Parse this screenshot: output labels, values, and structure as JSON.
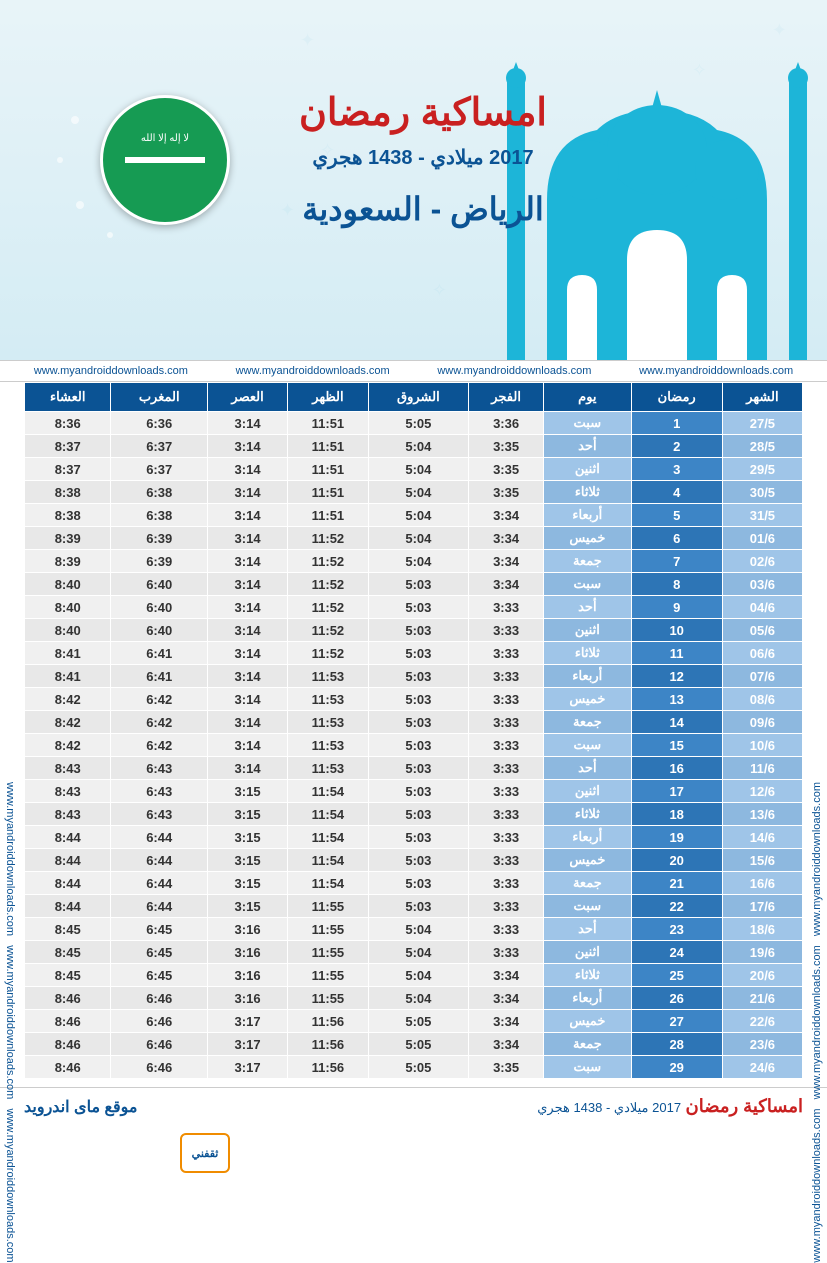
{
  "header": {
    "title_main": "امساكية رمضان",
    "title_year": "2017 ميلادي - 1438 هجري",
    "title_city": "الرياض - السعودية",
    "url": "www.myandroiddownloads.com",
    "colors": {
      "title_red": "#c92020",
      "title_blue": "#0b5394",
      "bg_cyan": "#4db6d6",
      "mosque_fill": "#1db5d8",
      "flag_green": "#169b53"
    }
  },
  "table": {
    "columns": [
      "الشهر",
      "رمضان",
      "يوم",
      "الفجر",
      "الشروق",
      "الظهر",
      "العصر",
      "المغرب",
      "العشاء"
    ],
    "header_bg": "#0b5394",
    "day_col_bg": "#9fc5e8",
    "ramadan_col_bg": "#3d85c6",
    "time_col_bg": "#f0f0f0",
    "rows": [
      {
        "month": "27/5",
        "ramadan": "1",
        "day": "سبت",
        "fajr": "3:36",
        "shorouq": "5:05",
        "dhuhr": "11:51",
        "asr": "3:14",
        "maghrib": "6:36",
        "isha": "8:36"
      },
      {
        "month": "28/5",
        "ramadan": "2",
        "day": "أحد",
        "fajr": "3:35",
        "shorouq": "5:04",
        "dhuhr": "11:51",
        "asr": "3:14",
        "maghrib": "6:37",
        "isha": "8:37"
      },
      {
        "month": "29/5",
        "ramadan": "3",
        "day": "اثنين",
        "fajr": "3:35",
        "shorouq": "5:04",
        "dhuhr": "11:51",
        "asr": "3:14",
        "maghrib": "6:37",
        "isha": "8:37"
      },
      {
        "month": "30/5",
        "ramadan": "4",
        "day": "ثلاثاء",
        "fajr": "3:35",
        "shorouq": "5:04",
        "dhuhr": "11:51",
        "asr": "3:14",
        "maghrib": "6:38",
        "isha": "8:38"
      },
      {
        "month": "31/5",
        "ramadan": "5",
        "day": "أربعاء",
        "fajr": "3:34",
        "shorouq": "5:04",
        "dhuhr": "11:51",
        "asr": "3:14",
        "maghrib": "6:38",
        "isha": "8:38"
      },
      {
        "month": "01/6",
        "ramadan": "6",
        "day": "خميس",
        "fajr": "3:34",
        "shorouq": "5:04",
        "dhuhr": "11:52",
        "asr": "3:14",
        "maghrib": "6:39",
        "isha": "8:39"
      },
      {
        "month": "02/6",
        "ramadan": "7",
        "day": "جمعة",
        "fajr": "3:34",
        "shorouq": "5:04",
        "dhuhr": "11:52",
        "asr": "3:14",
        "maghrib": "6:39",
        "isha": "8:39"
      },
      {
        "month": "03/6",
        "ramadan": "8",
        "day": "سبت",
        "fajr": "3:34",
        "shorouq": "5:03",
        "dhuhr": "11:52",
        "asr": "3:14",
        "maghrib": "6:40",
        "isha": "8:40"
      },
      {
        "month": "04/6",
        "ramadan": "9",
        "day": "أحد",
        "fajr": "3:33",
        "shorouq": "5:03",
        "dhuhr": "11:52",
        "asr": "3:14",
        "maghrib": "6:40",
        "isha": "8:40"
      },
      {
        "month": "05/6",
        "ramadan": "10",
        "day": "اثنين",
        "fajr": "3:33",
        "shorouq": "5:03",
        "dhuhr": "11:52",
        "asr": "3:14",
        "maghrib": "6:40",
        "isha": "8:40"
      },
      {
        "month": "06/6",
        "ramadan": "11",
        "day": "ثلاثاء",
        "fajr": "3:33",
        "shorouq": "5:03",
        "dhuhr": "11:52",
        "asr": "3:14",
        "maghrib": "6:41",
        "isha": "8:41"
      },
      {
        "month": "07/6",
        "ramadan": "12",
        "day": "أربعاء",
        "fajr": "3:33",
        "shorouq": "5:03",
        "dhuhr": "11:53",
        "asr": "3:14",
        "maghrib": "6:41",
        "isha": "8:41"
      },
      {
        "month": "08/6",
        "ramadan": "13",
        "day": "خميس",
        "fajr": "3:33",
        "shorouq": "5:03",
        "dhuhr": "11:53",
        "asr": "3:14",
        "maghrib": "6:42",
        "isha": "8:42"
      },
      {
        "month": "09/6",
        "ramadan": "14",
        "day": "جمعة",
        "fajr": "3:33",
        "shorouq": "5:03",
        "dhuhr": "11:53",
        "asr": "3:14",
        "maghrib": "6:42",
        "isha": "8:42"
      },
      {
        "month": "10/6",
        "ramadan": "15",
        "day": "سبت",
        "fajr": "3:33",
        "shorouq": "5:03",
        "dhuhr": "11:53",
        "asr": "3:14",
        "maghrib": "6:42",
        "isha": "8:42"
      },
      {
        "month": "11/6",
        "ramadan": "16",
        "day": "أحد",
        "fajr": "3:33",
        "shorouq": "5:03",
        "dhuhr": "11:53",
        "asr": "3:14",
        "maghrib": "6:43",
        "isha": "8:43"
      },
      {
        "month": "12/6",
        "ramadan": "17",
        "day": "اثنين",
        "fajr": "3:33",
        "shorouq": "5:03",
        "dhuhr": "11:54",
        "asr": "3:15",
        "maghrib": "6:43",
        "isha": "8:43"
      },
      {
        "month": "13/6",
        "ramadan": "18",
        "day": "ثلاثاء",
        "fajr": "3:33",
        "shorouq": "5:03",
        "dhuhr": "11:54",
        "asr": "3:15",
        "maghrib": "6:43",
        "isha": "8:43"
      },
      {
        "month": "14/6",
        "ramadan": "19",
        "day": "أربعاء",
        "fajr": "3:33",
        "shorouq": "5:03",
        "dhuhr": "11:54",
        "asr": "3:15",
        "maghrib": "6:44",
        "isha": "8:44"
      },
      {
        "month": "15/6",
        "ramadan": "20",
        "day": "خميس",
        "fajr": "3:33",
        "shorouq": "5:03",
        "dhuhr": "11:54",
        "asr": "3:15",
        "maghrib": "6:44",
        "isha": "8:44"
      },
      {
        "month": "16/6",
        "ramadan": "21",
        "day": "جمعة",
        "fajr": "3:33",
        "shorouq": "5:03",
        "dhuhr": "11:54",
        "asr": "3:15",
        "maghrib": "6:44",
        "isha": "8:44"
      },
      {
        "month": "17/6",
        "ramadan": "22",
        "day": "سبت",
        "fajr": "3:33",
        "shorouq": "5:03",
        "dhuhr": "11:55",
        "asr": "3:15",
        "maghrib": "6:44",
        "isha": "8:44"
      },
      {
        "month": "18/6",
        "ramadan": "23",
        "day": "أحد",
        "fajr": "3:33",
        "shorouq": "5:04",
        "dhuhr": "11:55",
        "asr": "3:16",
        "maghrib": "6:45",
        "isha": "8:45"
      },
      {
        "month": "19/6",
        "ramadan": "24",
        "day": "اثنين",
        "fajr": "3:33",
        "shorouq": "5:04",
        "dhuhr": "11:55",
        "asr": "3:16",
        "maghrib": "6:45",
        "isha": "8:45"
      },
      {
        "month": "20/6",
        "ramadan": "25",
        "day": "ثلاثاء",
        "fajr": "3:34",
        "shorouq": "5:04",
        "dhuhr": "11:55",
        "asr": "3:16",
        "maghrib": "6:45",
        "isha": "8:45"
      },
      {
        "month": "21/6",
        "ramadan": "26",
        "day": "أربعاء",
        "fajr": "3:34",
        "shorouq": "5:04",
        "dhuhr": "11:55",
        "asr": "3:16",
        "maghrib": "6:46",
        "isha": "8:46"
      },
      {
        "month": "22/6",
        "ramadan": "27",
        "day": "خميس",
        "fajr": "3:34",
        "shorouq": "5:05",
        "dhuhr": "11:56",
        "asr": "3:17",
        "maghrib": "6:46",
        "isha": "8:46"
      },
      {
        "month": "23/6",
        "ramadan": "28",
        "day": "جمعة",
        "fajr": "3:34",
        "shorouq": "5:05",
        "dhuhr": "11:56",
        "asr": "3:17",
        "maghrib": "6:46",
        "isha": "8:46"
      },
      {
        "month": "24/6",
        "ramadan": "29",
        "day": "سبت",
        "fajr": "3:35",
        "shorouq": "5:05",
        "dhuhr": "11:56",
        "asr": "3:17",
        "maghrib": "6:46",
        "isha": "8:46"
      }
    ]
  },
  "footer": {
    "right_title": "امساكية رمضان",
    "right_year": "2017 ميلادي - 1438 هجري",
    "left_text": "موقع ماى اندرويد",
    "badge_text": "ثقفني"
  }
}
